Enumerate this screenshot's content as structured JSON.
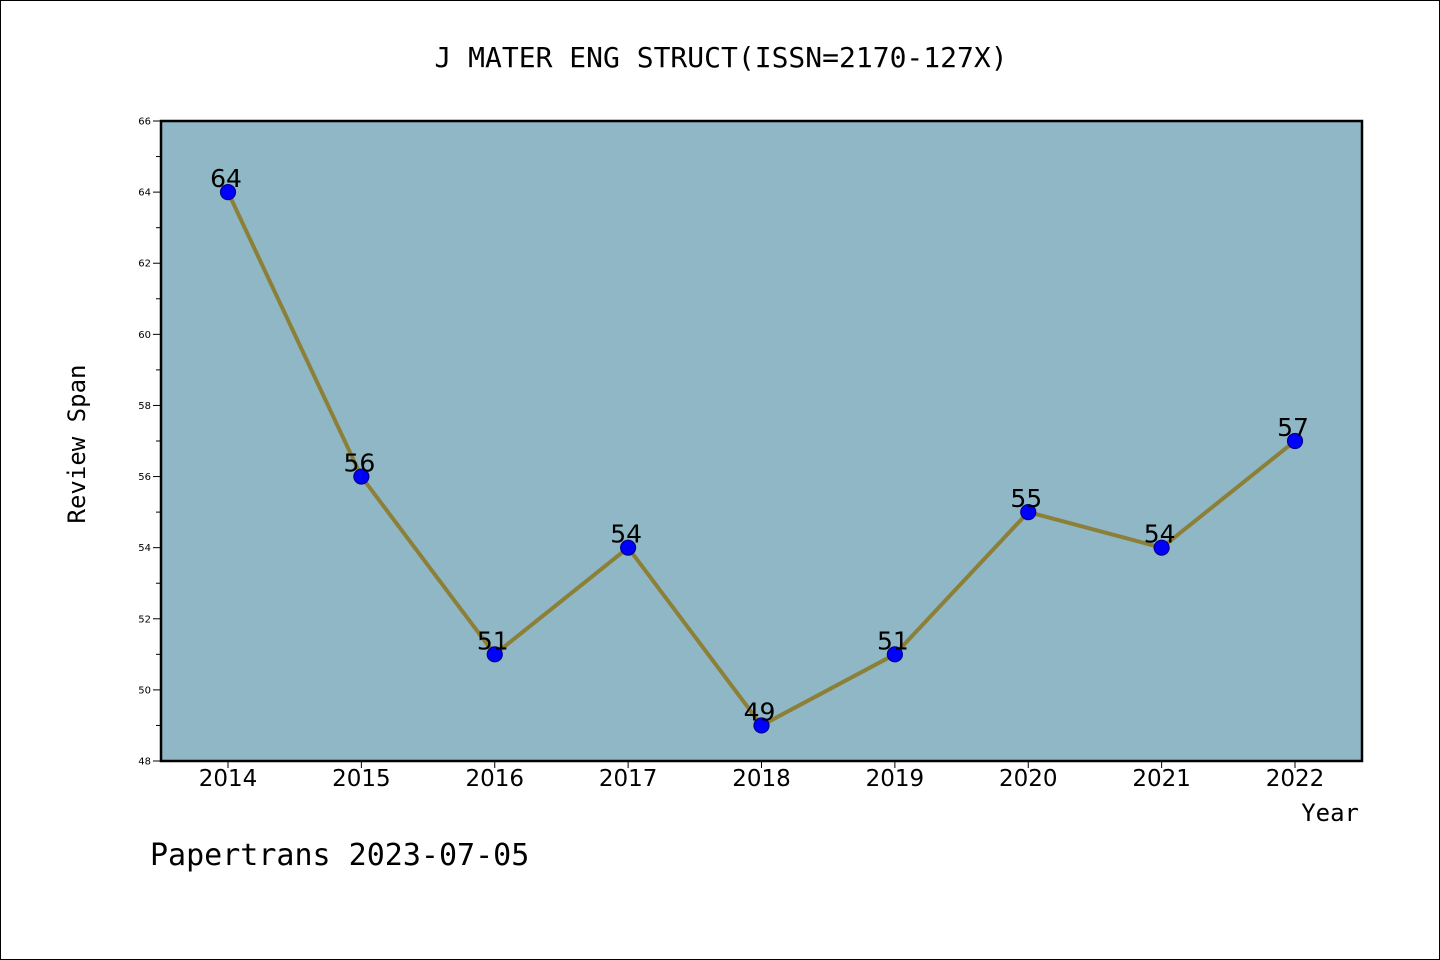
{
  "chart_data": {
    "type": "line",
    "title": "J MATER ENG STRUCT(ISSN=2170-127X)",
    "xlabel": "Year",
    "ylabel": "Review Span",
    "categories": [
      "2014",
      "2015",
      "2016",
      "2017",
      "2018",
      "2019",
      "2020",
      "2021",
      "2022"
    ],
    "series": [
      {
        "values": [
          64,
          56,
          51,
          54,
          49,
          51,
          55,
          54,
          57
        ]
      }
    ],
    "ylim": [
      48,
      66
    ],
    "yticks": [
      48,
      50,
      52,
      54,
      56,
      58,
      60,
      62,
      64,
      66
    ],
    "grid": false,
    "legend": "none",
    "data_labels": true
  },
  "footer": {
    "text": "Papertrans 2023-07-05"
  },
  "colors": {
    "plot_background": "#8fb7c5",
    "line": "#8c8038",
    "marker_fill": "#0000ff",
    "marker_edge": "#00008b"
  }
}
